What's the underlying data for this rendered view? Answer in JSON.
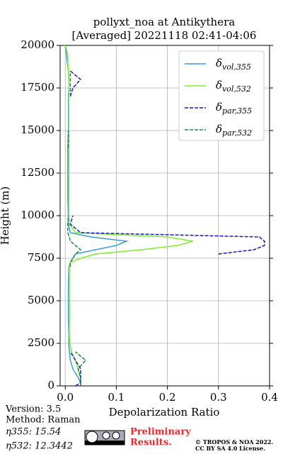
{
  "chart_data": {
    "type": "profile",
    "title": "pollyxt_noa at Antikythera",
    "subtitle": "[Averaged] 20221118 02:41-04:06",
    "x_label": "Depolarization Ratio",
    "y_label": "Height (m)",
    "xlim": [
      -0.01,
      0.4
    ],
    "ylim": [
      0,
      20000
    ],
    "xticks": [
      {
        "value": 0,
        "label": "0.0"
      },
      0.1,
      0.2,
      0.3,
      0.4
    ],
    "yticks": [
      0,
      2500,
      5000,
      7500,
      10000,
      12500,
      15000,
      17500,
      20000
    ],
    "grid": true,
    "legend": "upper right",
    "heights": [
      0,
      200,
      500,
      1000,
      1500,
      2000,
      2500,
      3000,
      4000,
      5000,
      6000,
      7000,
      7250,
      7500,
      7750,
      8000,
      8250,
      8500,
      8750,
      9000,
      9500,
      10000,
      11000,
      12000,
      13000,
      14000,
      15000,
      16000,
      17000,
      17500,
      18000,
      18500,
      19000,
      19500,
      20000
    ],
    "series": [
      {
        "name": "δvol,355",
        "color": "#3a9ce0",
        "dash": false,
        "values": [
          0.03,
          0.03,
          0.025,
          0.015,
          0.01,
          0.008,
          0.007,
          0.007,
          0.006,
          0.006,
          0.006,
          0.007,
          0.01,
          0.015,
          0.02,
          0.06,
          0.1,
          0.12,
          0.05,
          0.01,
          0.006,
          0.006,
          0.005,
          0.005,
          0.005,
          0.005,
          0.006,
          0.006,
          0.006,
          0.007,
          0.007,
          0.006,
          0.004,
          0.002,
          0.0
        ]
      },
      {
        "name": "δvol,532",
        "color": "#7df02a",
        "dash": false,
        "values": [
          0.03,
          0.03,
          0.03,
          0.025,
          0.02,
          0.012,
          0.009,
          0.008,
          0.008,
          0.008,
          0.008,
          0.008,
          0.01,
          0.03,
          0.06,
          0.15,
          0.22,
          0.25,
          0.2,
          0.02,
          0.008,
          0.007,
          0.007,
          0.007,
          0.007,
          0.007,
          0.007,
          0.007,
          0.007,
          0.007,
          0.007,
          0.006,
          0.005,
          0.005,
          0.0
        ]
      },
      {
        "name": "δpar,355",
        "color": "#1515d8",
        "dash": true,
        "values": [
          0.02,
          0.03,
          0.03,
          0.03,
          0.02,
          0.01,
          null,
          null,
          null,
          null,
          null,
          null,
          null,
          null,
          0.3,
          0.37,
          0.39,
          0.39,
          0.38,
          0.03,
          0.01,
          0.015,
          null,
          null,
          null,
          null,
          0.015,
          null,
          0.01,
          0.015,
          0.03,
          0.01,
          null,
          0.005,
          null
        ]
      },
      {
        "name": "δpar,532",
        "color": "#19884a",
        "dash": true,
        "values": [
          0.03,
          0.03,
          0.03,
          0.025,
          0.04,
          0.02,
          null,
          null,
          null,
          0.01,
          null,
          0.01,
          0.01,
          0.015,
          0.02,
          0.03,
          0.02,
          0.01,
          0.008,
          0.005,
          0.005,
          0.006,
          null,
          null,
          null,
          0.006,
          0.006,
          null,
          0.01,
          0.01,
          0.01,
          0.01,
          null,
          0.005,
          null
        ]
      }
    ]
  },
  "footer": {
    "version": "Version: 3.5",
    "method": "Method: Raman",
    "eta355": "η355:  15.54",
    "eta532": "η532: 12.3442",
    "preliminary": [
      "Preliminary",
      "Results."
    ],
    "copyright": [
      "© TROPOS & NOA 2022.",
      "CC BY SA 4.0 License."
    ]
  }
}
